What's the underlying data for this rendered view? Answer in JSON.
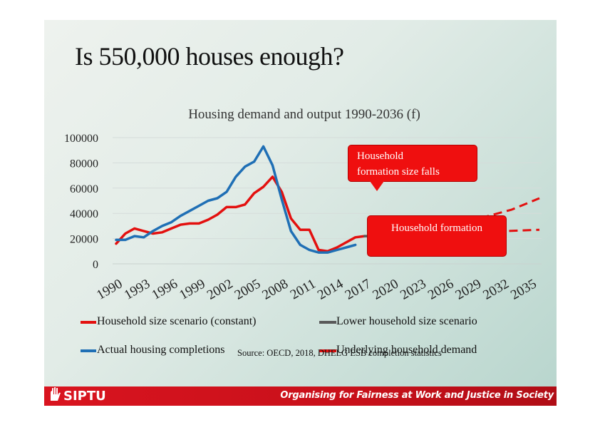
{
  "slide": {
    "title": "Is 550,000 houses enough?",
    "source": "Source: OECD, 2018, DHELG ESB completion statistics"
  },
  "footer": {
    "logo_text": "SIPTU",
    "tagline": "Organising for Fairness at Work and Justice in Society"
  },
  "callouts": {
    "top": [
      "Household",
      "formation size falls"
    ],
    "bottom": "Household formation"
  },
  "colors": {
    "red": "#e3100f",
    "blue": "#1f6fb5",
    "grey": "#595959",
    "callout": "#ef0f0f",
    "footer": "#d9141f"
  },
  "chart_data": {
    "type": "line",
    "title": "Housing demand and output 1990-2036 (f)",
    "xlabel": "",
    "ylabel": "",
    "ylim": [
      0,
      100000
    ],
    "yticks": [
      "0",
      "20000",
      "40000",
      "60000",
      "80000",
      "100000"
    ],
    "xticks": [
      "1990",
      "1993",
      "1996",
      "1999",
      "2002",
      "2005",
      "2008",
      "2011",
      "2014",
      "2017",
      "2020",
      "2023",
      "2026",
      "2029",
      "2032",
      "2035"
    ],
    "x_range": [
      1990,
      2036
    ],
    "grid": true,
    "series": [
      {
        "name": "Underlying household demand",
        "color": "#e3100f",
        "style": "solid",
        "x": [
          1990,
          1991,
          1992,
          1993,
          1994,
          1995,
          1996,
          1997,
          1998,
          1999,
          2000,
          2001,
          2002,
          2003,
          2004,
          2005,
          2006,
          2007,
          2008,
          2009,
          2010,
          2011,
          2012,
          2013,
          2014,
          2015,
          2016,
          2017
        ],
        "values": [
          16000,
          24000,
          28000,
          26000,
          24000,
          25000,
          28000,
          31000,
          32000,
          32000,
          35000,
          39000,
          45000,
          45000,
          47000,
          56000,
          61000,
          69000,
          57000,
          36000,
          27000,
          27000,
          11000,
          10000,
          13000,
          17000,
          21000,
          22000
        ]
      },
      {
        "name": "Actual housing completions",
        "color": "#1f6fb5",
        "style": "solid",
        "x": [
          1990,
          1991,
          1992,
          1993,
          1994,
          1995,
          1996,
          1997,
          1998,
          1999,
          2000,
          2001,
          2002,
          2003,
          2004,
          2005,
          2006,
          2007,
          2008,
          2009,
          2010,
          2011,
          2012,
          2013,
          2014,
          2015,
          2016
        ],
        "values": [
          19000,
          19000,
          22000,
          21000,
          26000,
          30000,
          33000,
          38000,
          42000,
          46000,
          50000,
          52000,
          57000,
          69000,
          77000,
          81000,
          93000,
          78000,
          51000,
          26000,
          15000,
          11000,
          9000,
          9000,
          11000,
          13000,
          15000
        ]
      },
      {
        "name": "Lower household size scenario",
        "color": "#595959",
        "style": "solid",
        "x": [
          2017,
          2018
        ],
        "values": [
          22000,
          22000
        ]
      },
      {
        "name": "Household size scenario (constant)",
        "color": "#e3100f",
        "style": "dashed",
        "x": [
          2018,
          2036
        ],
        "values": [
          22000,
          27000
        ]
      },
      {
        "name": "Underlying household demand",
        "color": "#e3100f",
        "style": "dashed",
        "x": [
          2018,
          2021,
          2024,
          2027,
          2030,
          2033,
          2036
        ],
        "values": [
          22000,
          24700,
          28000,
          32000,
          37000,
          43000,
          52000
        ]
      }
    ],
    "legend": {
      "placement": "bottom",
      "entries": [
        {
          "label": "Household size scenario (constant)",
          "color": "#e3100f"
        },
        {
          "label": "Lower household size scenario",
          "color": "#595959"
        },
        {
          "label": "Actual housing completions",
          "color": "#1f6fb5"
        },
        {
          "label": "Underlying household demand",
          "color": "#e3100f"
        }
      ]
    }
  }
}
